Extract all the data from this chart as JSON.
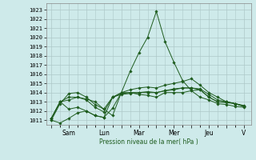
{
  "bg_color": "#ceeaea",
  "grid_color": "#adc8c8",
  "line_color": "#1e5c1e",
  "marker_color": "#1e5c1e",
  "xlabel": "Pression niveau de la mer( hPa )",
  "ylim": [
    1010.5,
    1023.7
  ],
  "yticks": [
    1011,
    1012,
    1013,
    1014,
    1015,
    1016,
    1017,
    1018,
    1019,
    1020,
    1021,
    1022,
    1023
  ],
  "xtick_positions": [
    0,
    1.0,
    2.0,
    3.0,
    4.0,
    5.0,
    6.0,
    7.0,
    8.0,
    9.0,
    10.0,
    11.0
  ],
  "xtick_labels": [
    "",
    "Sam",
    "",
    "Lun",
    "",
    "Mar",
    "",
    "Mer",
    "",
    "Jeu",
    "",
    "V"
  ],
  "xlim": [
    -0.3,
    11.4
  ],
  "series": [
    {
      "x": [
        0,
        0.5,
        1.0,
        1.5,
        2.0,
        2.5,
        3.0,
        3.5,
        4.0,
        4.5,
        5.0,
        5.5,
        6.0,
        6.5,
        7.0,
        7.5,
        8.0,
        8.5,
        9.0,
        9.5,
        10.0,
        10.5,
        11.0
      ],
      "y": [
        1011.0,
        1010.7,
        1011.2,
        1011.8,
        1012.0,
        1011.5,
        1011.3,
        1012.3,
        1014.0,
        1016.3,
        1018.3,
        1020.0,
        1022.8,
        1019.5,
        1017.3,
        1015.3,
        1014.2,
        1013.5,
        1013.2,
        1012.8,
        1012.7,
        1012.5,
        1012.4
      ]
    },
    {
      "x": [
        0,
        0.5,
        1.0,
        1.5,
        2.0,
        2.5,
        3.0,
        3.5,
        4.0,
        4.5,
        5.0,
        5.5,
        6.0,
        6.5,
        7.0,
        7.5,
        8.0,
        8.5,
        9.0,
        9.5,
        10.0,
        10.5,
        11.0
      ],
      "y": [
        1011.0,
        1012.8,
        1013.9,
        1014.0,
        1013.5,
        1012.7,
        1012.2,
        1011.5,
        1014.0,
        1014.0,
        1013.8,
        1013.7,
        1013.5,
        1014.0,
        1014.0,
        1014.0,
        1014.2,
        1014.3,
        1013.5,
        1013.0,
        1012.9,
        1012.8,
        1012.6
      ]
    },
    {
      "x": [
        0,
        0.5,
        1.0,
        1.5,
        2.0,
        2.5,
        3.0,
        3.5,
        4.0,
        4.5,
        5.0,
        5.5,
        6.0,
        6.5,
        7.0,
        7.5,
        8.0,
        8.5,
        9.0,
        9.5,
        10.0,
        10.5,
        11.0
      ],
      "y": [
        1011.2,
        1013.0,
        1013.2,
        1013.5,
        1013.2,
        1012.4,
        1011.9,
        1013.5,
        1013.8,
        1013.9,
        1014.0,
        1014.0,
        1014.0,
        1014.2,
        1014.3,
        1014.5,
        1014.5,
        1014.4,
        1013.8,
        1013.2,
        1013.0,
        1012.8,
        1012.5
      ]
    },
    {
      "x": [
        0,
        0.5,
        1.0,
        1.5,
        2.0,
        2.5,
        3.0,
        3.5,
        4.0,
        4.5,
        5.0,
        5.5,
        6.0,
        6.5,
        7.0,
        7.5,
        8.0,
        8.5,
        9.0,
        9.5,
        10.0,
        10.5,
        11.0
      ],
      "y": [
        1011.2,
        1013.0,
        1012.2,
        1012.4,
        1012.0,
        1011.5,
        1011.3,
        1013.5,
        1013.9,
        1014.0,
        1014.0,
        1014.1,
        1014.0,
        1014.2,
        1014.4,
        1014.5,
        1014.5,
        1014.3,
        1013.5,
        1013.0,
        1013.0,
        1012.8,
        1012.5
      ]
    },
    {
      "x": [
        0,
        0.5,
        1.0,
        1.5,
        2.0,
        2.5,
        3.0,
        3.5,
        4.0,
        4.5,
        5.0,
        5.5,
        6.0,
        6.5,
        7.0,
        7.5,
        8.0,
        8.5,
        9.0,
        9.5,
        10.0,
        10.5,
        11.0
      ],
      "y": [
        1011.2,
        1013.0,
        1013.5,
        1013.5,
        1013.3,
        1013.0,
        1012.2,
        1013.5,
        1014.0,
        1014.3,
        1014.5,
        1014.6,
        1014.5,
        1014.8,
        1015.0,
        1015.2,
        1015.5,
        1014.8,
        1014.0,
        1013.5,
        1013.0,
        1012.8,
        1012.5
      ]
    }
  ]
}
